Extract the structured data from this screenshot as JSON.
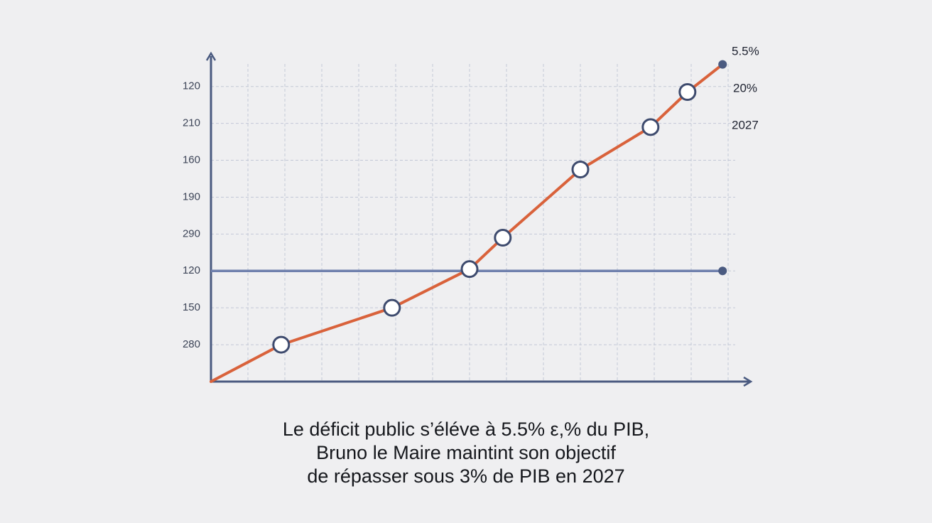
{
  "chart_data": {
    "type": "line",
    "x": [
      0,
      1.9,
      4.9,
      7,
      7.9,
      10,
      11.9,
      12.9,
      13.85
    ],
    "series": [
      {
        "color": "#d9623b",
        "values": [
          0,
          1,
          2,
          3.05,
          3.9,
          5.75,
          6.9,
          7.85,
          8.6
        ]
      }
    ],
    "xlim": [
      0,
      14.5
    ],
    "xticks": [
      1,
      2,
      3,
      4,
      5,
      6,
      7,
      8,
      9,
      10,
      11,
      12,
      13,
      14
    ],
    "ylim": [
      0,
      8.9
    ],
    "yticks": [
      {
        "value": 1,
        "label": "280"
      },
      {
        "value": 2,
        "label": "150"
      },
      {
        "value": 3,
        "label": "120"
      },
      {
        "value": 4,
        "label": "290"
      },
      {
        "value": 5,
        "label": "190"
      },
      {
        "value": 6,
        "label": "160"
      },
      {
        "value": 7,
        "label": "210"
      },
      {
        "value": 8,
        "label": "120"
      }
    ],
    "grid": true,
    "hline": {
      "value": 3,
      "color": "#6f80ad"
    },
    "annotations": [
      "5.5%",
      "20%",
      "2027"
    ],
    "caption": [
      "Le déficit public s’éléve à 5.5% ε,% du PIB,",
      "Bruno le Maire maintint son objectif",
      "de répasser sous 3% de PIB en 2027"
    ]
  }
}
